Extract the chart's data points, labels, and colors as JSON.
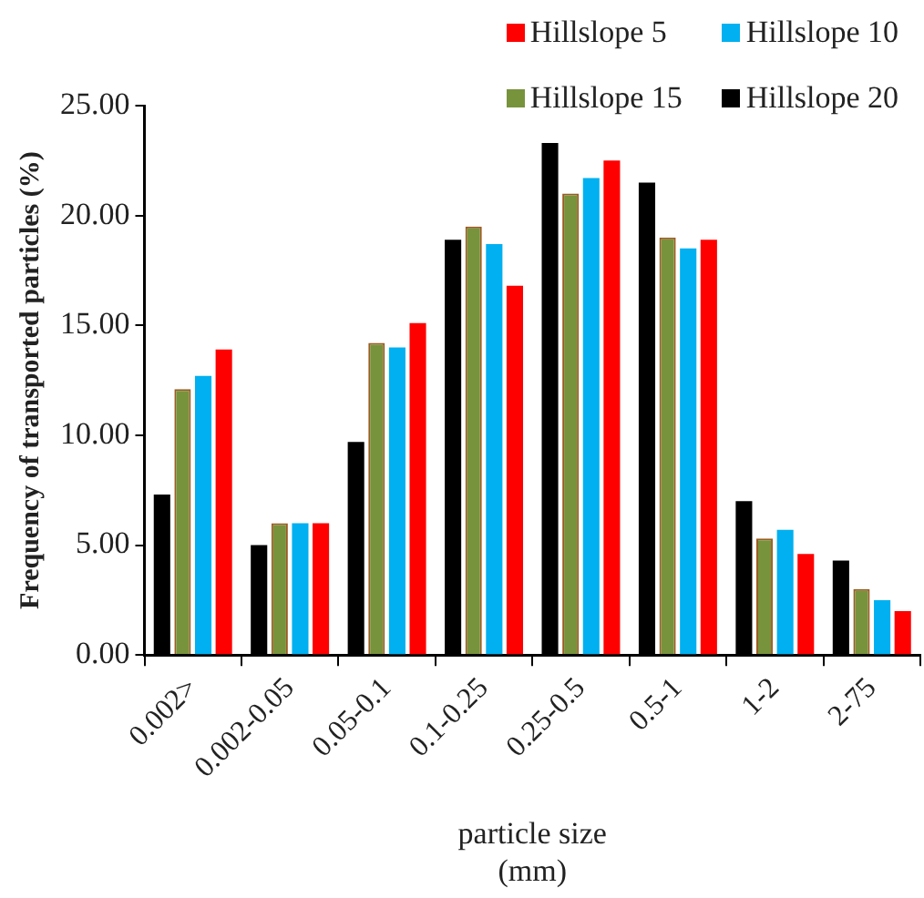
{
  "chart_data": {
    "type": "bar",
    "xlabel": "particle size\n(mm)",
    "ylabel": "Frequency of transported particles (%)",
    "categories": [
      "0.002>",
      "0.002-0.05",
      "0.05-0.1",
      "0.1-0.25",
      "0.25-0.5",
      "0.5-1",
      "1-2",
      "2-75"
    ],
    "series": [
      {
        "name": "Hillslope 20",
        "color": "#000000",
        "values": [
          7.3,
          5.0,
          9.7,
          18.9,
          23.3,
          21.5,
          7.0,
          4.3
        ]
      },
      {
        "name": "Hillslope 15",
        "color": "#77933c",
        "values": [
          12.1,
          6.0,
          14.2,
          19.5,
          21.0,
          19.0,
          5.3,
          3.0
        ]
      },
      {
        "name": "Hillslope 10",
        "color": "#00b0f0",
        "values": [
          12.7,
          6.0,
          14.0,
          18.7,
          21.7,
          18.5,
          5.7,
          2.5
        ]
      },
      {
        "name": "Hillslope 5",
        "color": "#ff0000",
        "values": [
          13.9,
          6.0,
          15.1,
          16.8,
          22.5,
          18.9,
          4.6,
          2.0
        ]
      }
    ],
    "ylim": [
      0,
      25
    ],
    "yticks": [
      {
        "value": 0,
        "label": "0.00"
      },
      {
        "value": 5,
        "label": "5.00"
      },
      {
        "value": 10,
        "label": "10.00"
      },
      {
        "value": 15,
        "label": "15.00"
      },
      {
        "value": 20,
        "label": "20.00"
      },
      {
        "value": 25,
        "label": "25.00"
      }
    ],
    "grid": false,
    "legend": "top right"
  }
}
